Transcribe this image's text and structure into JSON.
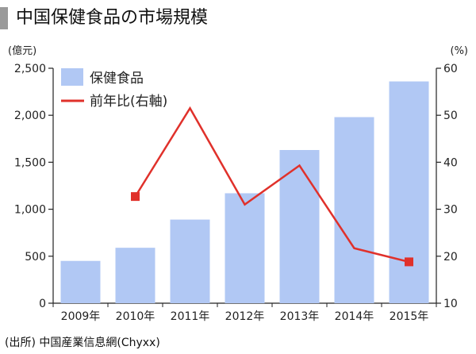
{
  "title": "中国保健食品の市場規模",
  "source": "(出所) 中国産業信息網(Chyxx)",
  "colors": {
    "bar": "#b1c8f4",
    "line": "#e0312b",
    "axis": "#222222",
    "grid": "#cccccc"
  },
  "chart_data": {
    "type": "bar",
    "categories": [
      "2009年",
      "2010年",
      "2011年",
      "2012年",
      "2013年",
      "2014年",
      "2015年"
    ],
    "left_axis": {
      "unit": "(億元)",
      "min": 0,
      "max": 2500,
      "ticks": [
        "0",
        "500",
        "1,000",
        "1,500",
        "2,000",
        "2,500"
      ]
    },
    "right_axis": {
      "unit": "(%)",
      "min": 10,
      "max": 60,
      "ticks": [
        "10",
        "20",
        "30",
        "40",
        "50",
        "60"
      ]
    },
    "series": [
      {
        "name": "保健食品",
        "type": "bar",
        "axis": "left",
        "values": [
          450,
          590,
          890,
          1170,
          1630,
          1980,
          2360
        ]
      },
      {
        "name": "前年比(右軸)",
        "type": "line",
        "axis": "right",
        "values": [
          null,
          32.7,
          51.5,
          31.0,
          39.3,
          21.7,
          18.8
        ]
      }
    ],
    "grid": false,
    "legend": "top-left"
  }
}
